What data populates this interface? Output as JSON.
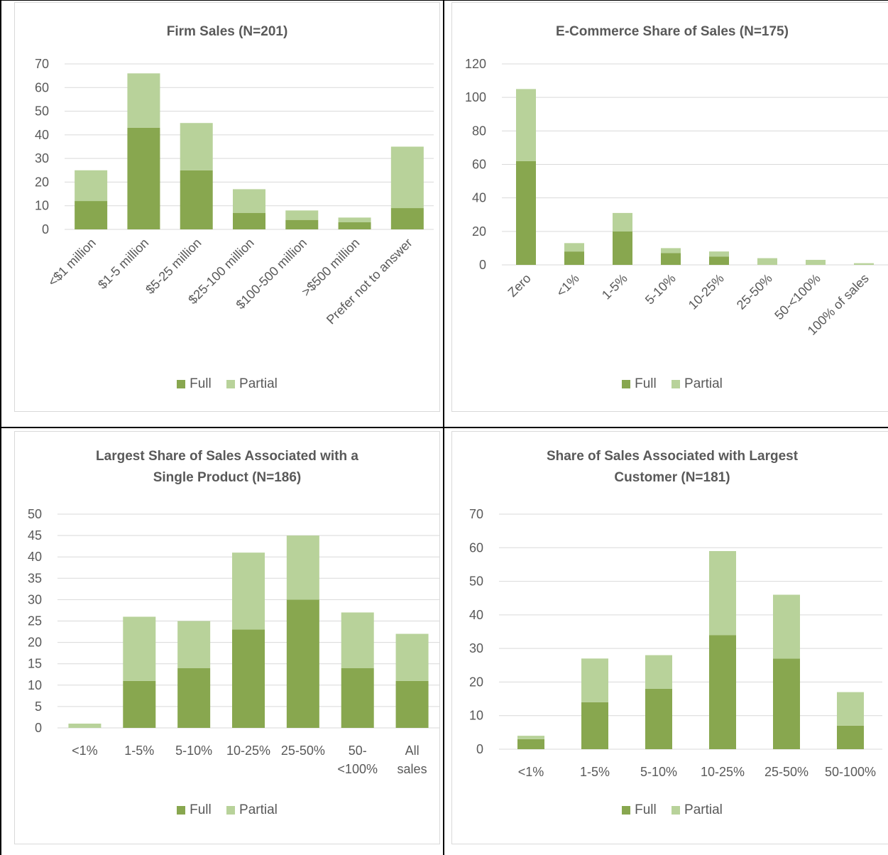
{
  "colors": {
    "full": "#88a74f",
    "partial": "#b8d29a",
    "grid": "#d9d9d9",
    "text": "#595959"
  },
  "legend": {
    "full": "Full",
    "partial": "Partial"
  },
  "chart_data": [
    {
      "type": "bar",
      "stacked": true,
      "title": "Firm Sales (N=201)",
      "categories": [
        "<$1 million",
        "$1-5 million",
        "$5-25 million",
        "$25-100 million",
        "$100-500 million",
        ">$500 million",
        "Prefer not to answer"
      ],
      "series": [
        {
          "name": "Full",
          "values": [
            12,
            43,
            25,
            7,
            4,
            3,
            9
          ]
        },
        {
          "name": "Partial",
          "values": [
            13,
            23,
            20,
            10,
            4,
            2,
            26
          ]
        }
      ],
      "ylim": [
        0,
        70
      ],
      "ystep": 10,
      "xlabel_rotation": "diagonal",
      "grid": true,
      "legend_position": "bottom"
    },
    {
      "type": "bar",
      "stacked": true,
      "title": "E-Commerce Share of Sales (N=175)",
      "categories": [
        "Zero",
        "<1%",
        "1-5%",
        "5-10%",
        "10-25%",
        "25-50%",
        "50-<100%",
        "100% of sales"
      ],
      "series": [
        {
          "name": "Full",
          "values": [
            62,
            8,
            20,
            7,
            5,
            0,
            0,
            0
          ]
        },
        {
          "name": "Partial",
          "values": [
            43,
            5,
            11,
            3,
            3,
            4,
            3,
            1
          ]
        }
      ],
      "ylim": [
        0,
        120
      ],
      "ystep": 20,
      "xlabel_rotation": "diagonal",
      "grid": true,
      "legend_position": "bottom"
    },
    {
      "type": "bar",
      "stacked": true,
      "title": "Largest Share of Sales Associated with a Single Product (N=186)",
      "title_lines": [
        "Largest Share of Sales Associated with a",
        "Single Product (N=186)"
      ],
      "categories": [
        "<1%",
        "1-5%",
        "5-10%",
        "10-25%",
        "25-50%",
        "50-<100%",
        "All sales"
      ],
      "category_lines": [
        [
          "<1%"
        ],
        [
          "1-5%"
        ],
        [
          "5-10%"
        ],
        [
          "10-25%"
        ],
        [
          "25-50%"
        ],
        [
          "50-",
          "<100%"
        ],
        [
          "All",
          "sales"
        ]
      ],
      "series": [
        {
          "name": "Full",
          "values": [
            0,
            11,
            14,
            23,
            30,
            14,
            11
          ]
        },
        {
          "name": "Partial",
          "values": [
            1,
            15,
            11,
            18,
            15,
            13,
            11
          ]
        }
      ],
      "ylim": [
        0,
        50
      ],
      "ystep": 5,
      "xlabel_rotation": "horizontal",
      "grid": true,
      "legend_position": "bottom"
    },
    {
      "type": "bar",
      "stacked": true,
      "title": "Share of Sales Associated with Largest Customer (N=181)",
      "title_lines": [
        "Share of Sales Associated with Largest",
        "Customer (N=181)"
      ],
      "categories": [
        "<1%",
        "1-5%",
        "5-10%",
        "10-25%",
        "25-50%",
        "50-100%"
      ],
      "series": [
        {
          "name": "Full",
          "values": [
            3,
            14,
            18,
            34,
            27,
            7
          ]
        },
        {
          "name": "Partial",
          "values": [
            1,
            13,
            10,
            25,
            19,
            10
          ]
        }
      ],
      "ylim": [
        0,
        70
      ],
      "ystep": 10,
      "xlabel_rotation": "horizontal",
      "grid": true,
      "legend_position": "bottom"
    }
  ]
}
